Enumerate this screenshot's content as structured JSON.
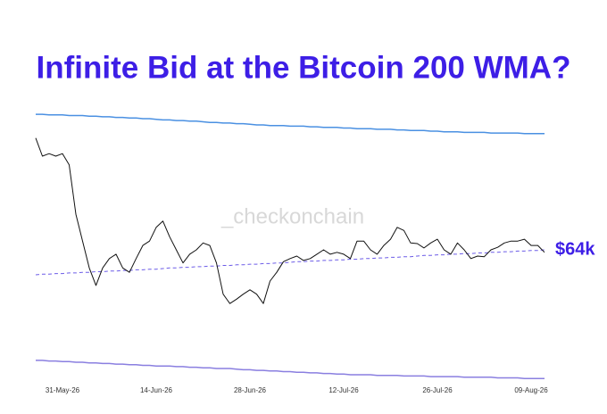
{
  "chart_data": {
    "type": "line",
    "title": "Infinite Bid at the Bitcoin 200 WMA?",
    "watermark": "_checkonchain",
    "annotation": "$64k",
    "annotation_color": "#3d1ee6",
    "x": [
      "27-May-26",
      "28-May-26",
      "29-May-26",
      "30-May-26",
      "31-May-26",
      "01-Jun-26",
      "02-Jun-26",
      "03-Jun-26",
      "04-Jun-26",
      "05-Jun-26",
      "06-Jun-26",
      "07-Jun-26",
      "08-Jun-26",
      "09-Jun-26",
      "10-Jun-26",
      "11-Jun-26",
      "12-Jun-26",
      "13-Jun-26",
      "14-Jun-26",
      "15-Jun-26",
      "16-Jun-26",
      "17-Jun-26",
      "18-Jun-26",
      "19-Jun-26",
      "20-Jun-26",
      "21-Jun-26",
      "22-Jun-26",
      "23-Jun-26",
      "24-Jun-26",
      "25-Jun-26",
      "26-Jun-26",
      "27-Jun-26",
      "28-Jun-26",
      "29-Jun-26",
      "30-Jun-26",
      "01-Jul-26",
      "02-Jul-26",
      "03-Jul-26",
      "04-Jul-26",
      "05-Jul-26",
      "06-Jul-26",
      "07-Jul-26",
      "08-Jul-26",
      "09-Jul-26",
      "10-Jul-26",
      "11-Jul-26",
      "12-Jul-26",
      "13-Jul-26",
      "14-Jul-26",
      "15-Jul-26",
      "16-Jul-26",
      "17-Jul-26",
      "18-Jul-26",
      "19-Jul-26",
      "20-Jul-26",
      "21-Jul-26",
      "22-Jul-26",
      "23-Jul-26",
      "24-Jul-26",
      "25-Jul-26",
      "26-Jul-26",
      "27-Jul-26",
      "28-Jul-26",
      "29-Jul-26",
      "30-Jul-26",
      "31-Jul-26",
      "01-Aug-26",
      "02-Aug-26",
      "03-Aug-26",
      "04-Aug-26",
      "05-Aug-26",
      "06-Aug-26",
      "07-Aug-26",
      "08-Aug-26",
      "09-Aug-26",
      "10-Aug-26",
      "11-Aug-26"
    ],
    "xticks": [
      "31-May-26",
      "14-Jun-26",
      "28-Jun-26",
      "12-Jul-26",
      "26-Jul-26",
      "09-Aug-26"
    ],
    "ylim": [
      42,
      88
    ],
    "series": [
      {
        "color": "#4a90e2",
        "dash": false,
        "width": 1.5,
        "values": [
          85.7,
          85.7,
          85.6,
          85.6,
          85.6,
          85.5,
          85.5,
          85.5,
          85.4,
          85.4,
          85.3,
          85.3,
          85.2,
          85.2,
          85.1,
          85.1,
          85.0,
          85.0,
          84.9,
          84.8,
          84.8,
          84.7,
          84.7,
          84.6,
          84.6,
          84.5,
          84.4,
          84.4,
          84.3,
          84.3,
          84.2,
          84.2,
          84.1,
          84.0,
          84.0,
          83.9,
          83.9,
          83.9,
          83.8,
          83.8,
          83.8,
          83.7,
          83.7,
          83.6,
          83.6,
          83.6,
          83.5,
          83.5,
          83.4,
          83.4,
          83.4,
          83.3,
          83.3,
          83.3,
          83.2,
          83.2,
          83.1,
          83.1,
          83.1,
          83.0,
          83.0,
          82.9,
          82.9,
          82.9,
          82.8,
          82.8,
          82.8,
          82.8,
          82.7,
          82.7,
          82.7,
          82.7,
          82.7,
          82.6,
          82.6,
          82.6,
          82.6
        ]
      },
      {
        "color": "#8a7fe0",
        "dash": false,
        "width": 1.5,
        "values": [
          46.3,
          46.3,
          46.2,
          46.2,
          46.1,
          46.1,
          46.0,
          46.0,
          45.9,
          45.9,
          45.8,
          45.8,
          45.7,
          45.7,
          45.6,
          45.6,
          45.5,
          45.5,
          45.4,
          45.4,
          45.4,
          45.3,
          45.3,
          45.2,
          45.2,
          45.1,
          45.1,
          45.0,
          45.0,
          45.0,
          44.9,
          44.8,
          44.8,
          44.7,
          44.7,
          44.6,
          44.6,
          44.5,
          44.5,
          44.4,
          44.4,
          44.3,
          44.3,
          44.2,
          44.2,
          44.1,
          44.1,
          44.0,
          44.0,
          44.0,
          44.0,
          43.9,
          43.9,
          43.9,
          43.9,
          43.8,
          43.8,
          43.8,
          43.8,
          43.7,
          43.7,
          43.7,
          43.7,
          43.7,
          43.6,
          43.6,
          43.6,
          43.6,
          43.6,
          43.5,
          43.5,
          43.5,
          43.5,
          43.4,
          43.4,
          43.4,
          43.4
        ]
      },
      {
        "color": "#6c5ce7",
        "dash": true,
        "width": 1,
        "values": [
          60.0,
          60.1,
          60.1,
          60.2,
          60.2,
          60.3,
          60.3,
          60.4,
          60.4,
          60.5,
          60.5,
          60.6,
          60.6,
          60.7,
          60.7,
          60.8,
          60.8,
          60.9,
          60.9,
          61.0,
          61.1,
          61.1,
          61.2,
          61.2,
          61.3,
          61.3,
          61.4,
          61.4,
          61.5,
          61.5,
          61.6,
          61.6,
          61.7,
          61.7,
          61.8,
          61.8,
          61.9,
          61.9,
          62.0,
          62.1,
          62.1,
          62.2,
          62.2,
          62.3,
          62.3,
          62.4,
          62.4,
          62.5,
          62.5,
          62.6,
          62.6,
          62.7,
          62.7,
          62.8,
          62.8,
          62.9,
          62.9,
          63.0,
          63.1,
          63.1,
          63.2,
          63.2,
          63.3,
          63.3,
          63.4,
          63.4,
          63.5,
          63.5,
          63.6,
          63.6,
          63.7,
          63.7,
          63.8,
          63.8,
          63.9,
          63.9,
          64.0
        ]
      },
      {
        "color": "#111111",
        "dash": false,
        "width": 1,
        "values": [
          81.9,
          79.0,
          79.4,
          79.0,
          79.4,
          77.6,
          69.7,
          65.4,
          61.1,
          58.3,
          61.1,
          62.6,
          63.3,
          61.1,
          60.4,
          62.6,
          64.7,
          65.4,
          67.6,
          68.6,
          66.1,
          64.0,
          61.9,
          63.3,
          64.0,
          65.1,
          64.7,
          61.9,
          56.9,
          55.4,
          56.1,
          56.9,
          57.6,
          56.9,
          55.4,
          59.0,
          60.4,
          62.1,
          62.6,
          63.0,
          62.3,
          62.6,
          63.3,
          64.0,
          63.3,
          63.6,
          63.3,
          62.6,
          65.4,
          65.4,
          64.0,
          63.3,
          64.7,
          65.7,
          67.6,
          67.1,
          65.1,
          65.0,
          64.3,
          65.1,
          65.7,
          64.0,
          63.3,
          65.1,
          64.0,
          62.6,
          63.0,
          62.9,
          64.0,
          64.4,
          65.1,
          65.4,
          65.4,
          65.7,
          64.7,
          64.7,
          63.6
        ]
      }
    ]
  }
}
